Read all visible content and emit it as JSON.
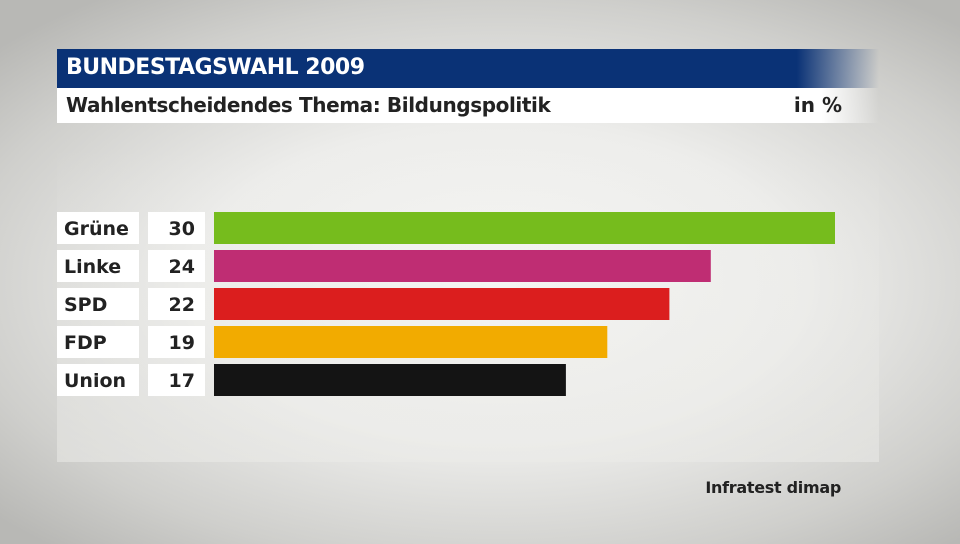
{
  "header": {
    "title": "BUNDESTAGSWAHL 2009",
    "subtitle": "Wahlentscheidendes Thema: Bildungspolitik",
    "unit": "in %"
  },
  "source": "Infratest dimap",
  "chart_data": {
    "type": "bar",
    "orientation": "horizontal",
    "title": "Wahlentscheidendes Thema: Bildungspolitik",
    "unit": "in %",
    "categories": [
      "Grüne",
      "Linke",
      "SPD",
      "FDP",
      "Union"
    ],
    "values": [
      30,
      24,
      22,
      19,
      17
    ],
    "colors": [
      "#76bc1d",
      "#bf2d73",
      "#db1e1e",
      "#f2ab00",
      "#141414"
    ],
    "xlim": [
      0,
      30
    ],
    "grid": false,
    "legend": "none"
  }
}
